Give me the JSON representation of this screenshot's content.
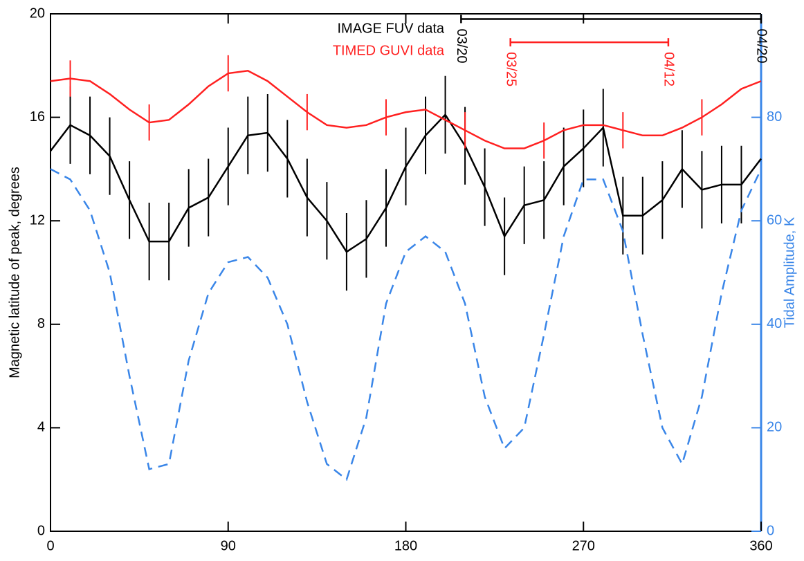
{
  "chart_data": {
    "type": "line",
    "ylabel": "Magnetic latitude of peak, degrees",
    "y2label": "Tidal Amplitude, K",
    "x": [
      0,
      10,
      20,
      30,
      40,
      50,
      60,
      70,
      80,
      90,
      100,
      110,
      120,
      130,
      140,
      150,
      160,
      170,
      180,
      190,
      200,
      210,
      220,
      230,
      240,
      250,
      260,
      270,
      280,
      290,
      300,
      310,
      320,
      330,
      340,
      350,
      360
    ],
    "xlim": [
      0,
      360
    ],
    "xticks": [
      0,
      90,
      180,
      270,
      360
    ],
    "ylim": [
      0,
      20
    ],
    "yticks": [
      0,
      4,
      8,
      12,
      16,
      20
    ],
    "y2lim": [
      0,
      100
    ],
    "y2ticks": [
      0,
      20,
      40,
      60,
      80
    ],
    "series": [
      {
        "name": "IMAGE FUV data",
        "color": "#000000",
        "values": [
          14.7,
          15.7,
          15.3,
          14.5,
          12.8,
          11.2,
          11.2,
          12.5,
          12.9,
          14.1,
          15.3,
          15.4,
          14.4,
          12.9,
          12.0,
          10.8,
          11.3,
          12.5,
          14.1,
          15.3,
          16.1,
          14.9,
          13.3,
          11.4,
          12.6,
          12.8,
          14.1,
          14.8,
          15.6,
          12.2,
          12.2,
          12.8,
          14.0,
          13.2,
          13.4,
          13.4,
          14.4
        ],
        "errors": [
          null,
          1.5,
          1.5,
          1.5,
          1.5,
          1.5,
          1.5,
          1.5,
          1.5,
          1.5,
          1.5,
          1.5,
          1.5,
          1.5,
          1.5,
          1.5,
          1.5,
          1.5,
          1.5,
          1.5,
          1.5,
          1.5,
          1.5,
          1.5,
          1.5,
          1.5,
          1.5,
          1.5,
          1.5,
          1.5,
          1.5,
          1.5,
          1.5,
          1.5,
          1.5,
          1.5,
          null
        ]
      },
      {
        "name": "TIMED GUVI data",
        "color": "#ff2020",
        "values": [
          17.4,
          17.5,
          17.4,
          16.9,
          16.3,
          15.8,
          15.9,
          16.5,
          17.2,
          17.7,
          17.8,
          17.4,
          16.8,
          16.2,
          15.7,
          15.6,
          15.7,
          16.0,
          16.2,
          16.3,
          15.9,
          15.5,
          15.1,
          14.8,
          14.8,
          15.1,
          15.5,
          15.7,
          15.7,
          15.5,
          15.3,
          15.3,
          15.6,
          16.0,
          16.5,
          17.1,
          17.4
        ],
        "errors": [
          null,
          0.7,
          null,
          null,
          null,
          0.7,
          null,
          null,
          null,
          0.7,
          null,
          null,
          null,
          0.7,
          null,
          null,
          null,
          0.7,
          null,
          null,
          null,
          0.7,
          null,
          null,
          null,
          0.7,
          null,
          null,
          null,
          0.7,
          null,
          null,
          null,
          0.7,
          null,
          null,
          null
        ]
      },
      {
        "color": "#3a86e8",
        "axis": "y2",
        "dashed": true,
        "values": [
          70,
          68,
          62,
          50,
          30,
          12,
          13,
          33,
          46,
          52,
          53,
          49,
          40,
          25,
          13,
          10,
          22,
          44,
          54,
          57,
          54,
          44,
          26,
          16,
          20,
          38,
          57,
          68,
          68,
          58,
          38,
          20,
          13,
          26,
          46,
          62,
          70
        ]
      }
    ],
    "annotations": [
      {
        "x_start": 208,
        "x_end": 360,
        "y": 19.8,
        "color": "#000000",
        "label_start": "03/20",
        "label_end": "04/20"
      },
      {
        "x_start": 233,
        "x_end": 313,
        "y": 18.9,
        "color": "#ff2020",
        "label_start": "03/25",
        "label_end": "04/12"
      }
    ]
  }
}
